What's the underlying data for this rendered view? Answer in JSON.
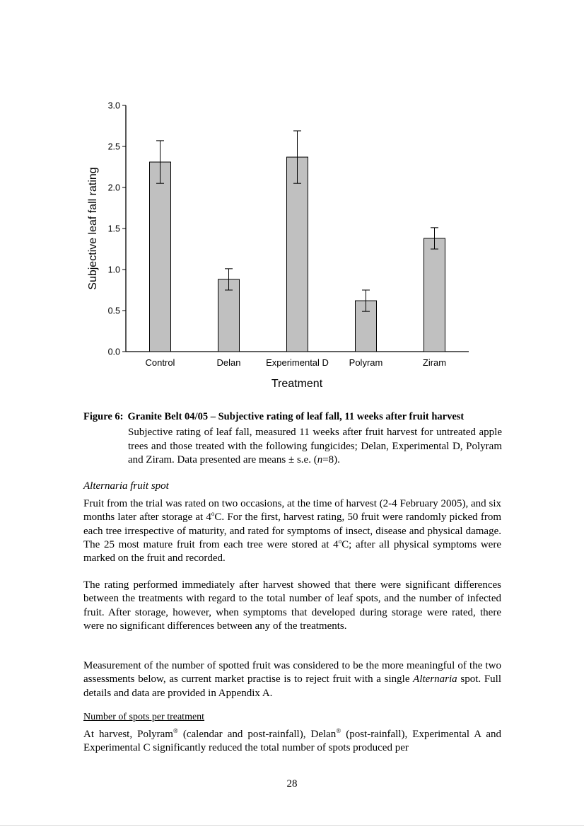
{
  "chart_data": {
    "type": "bar",
    "categories": [
      "Control",
      "Delan",
      "Experimental D",
      "Polyram",
      "Ziram"
    ],
    "values": [
      2.31,
      0.88,
      2.37,
      0.62,
      1.38
    ],
    "error": [
      0.26,
      0.13,
      0.32,
      0.13,
      0.13
    ],
    "ylim": [
      0,
      3.0
    ],
    "yticks": [
      "0.0",
      "0.5",
      "1.0",
      "1.5",
      "2.0",
      "2.5",
      "3.0"
    ],
    "ylabel": "Subjective leaf fall rating",
    "xlabel": "Treatment",
    "title": "",
    "bar_color": "#c0c0c0",
    "grid": false,
    "legend": "none"
  },
  "figure": {
    "label": "Figure 6:",
    "title": "Granite Belt 04/05 – Subjective rating of leaf fall, 11 weeks after fruit harvest",
    "caption_pre": "Subjective rating of leaf fall, measured 11 weeks after fruit harvest for untreated apple trees and those treated with the following fungicides; Delan, Experimental D, Polyram and Ziram. Data presented are means ± s.e. (",
    "caption_n": "n",
    "caption_post": "=8)."
  },
  "section": {
    "heading": "Alternaria fruit spot",
    "p1_a": "Fruit from the trial was rated on two occasions, at the time of harvest (2-4 February 2005), and six months later after storage at 4",
    "p1_deg": "o",
    "p1_b": "C.  For the first, harvest rating, 50 fruit were randomly picked from each tree irrespective of maturity, and rated for symptoms of insect, disease and physical damage.  The 25 most mature fruit from each tree were stored at 4",
    "p1_deg2": "o",
    "p1_c": "C; after all physical symptoms were marked on the fruit and recorded.",
    "p2": "The rating performed immediately after harvest showed that there were significant differences between the treatments with regard to the total number of leaf spots, and the number of infected fruit.  After storage, however, when symptoms that developed during storage were rated, there were no significant differences between any of the treatments.",
    "p3_a": "Measurement of the number of spotted fruit was considered to be the more meaningful of the two assessments below, as current market practise is to reject fruit with a single ",
    "p3_italic": "Alternaria",
    "p3_b": " spot.  Full details and data are provided in Appendix A.",
    "subheading": "Number of spots per treatment",
    "p4_a": "At harvest, Polyram",
    "p4_reg": "®",
    "p4_b": " (calendar and post-rainfall), Delan",
    "p4_reg2": "®",
    "p4_c": " (post-rainfall), Experimental A and Experimental C significantly reduced the total number of spots produced per"
  },
  "page_number": "28"
}
